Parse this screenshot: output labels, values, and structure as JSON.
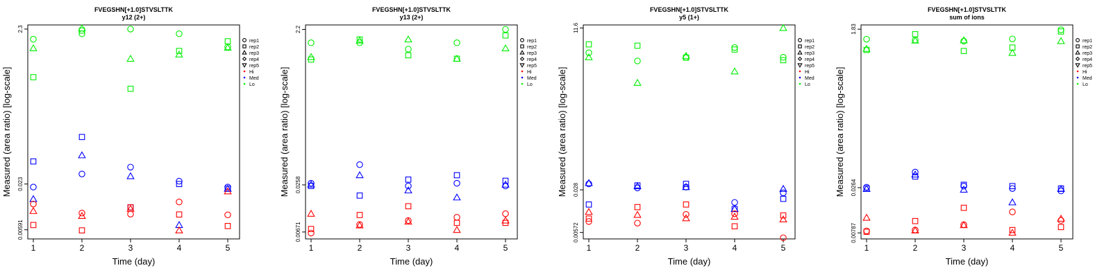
{
  "chart_data": [
    {
      "type": "scatter",
      "title": "FVEGSHN[+1.0]STVSLTTK",
      "subtitle": "y12 (2+)",
      "xlabel": "Time (day)",
      "ylabel": "Measured (area ratio) [log-scale]",
      "yscale": "log",
      "y_ticks": [
        "0.00591",
        "0.023",
        "2.3"
      ],
      "x_ticks": [
        "1",
        "2",
        "3",
        "4",
        "5"
      ],
      "ylim": [
        0.0045,
        2.6
      ],
      "legend": {
        "position": "right",
        "reps": [
          "rep1",
          "rep2",
          "rep3",
          "rep4",
          "rep5"
        ],
        "groups": [
          {
            "name": "Hi",
            "color": "#ff0000"
          },
          {
            "name": "Med",
            "color": "#0000ff"
          },
          {
            "name": "Lo",
            "color": "#00ee00"
          }
        ]
      },
      "series": [
        {
          "group": "Lo",
          "rep": "rep1",
          "points": [
            [
              1,
              1.7
            ],
            [
              2,
              2.0
            ],
            [
              3,
              2.3
            ],
            [
              4,
              2.0
            ],
            [
              5,
              1.35
            ]
          ]
        },
        {
          "group": "Lo",
          "rep": "rep2",
          "points": [
            [
              1,
              0.55
            ],
            [
              2,
              2.2
            ],
            [
              3,
              0.39
            ],
            [
              4,
              1.2
            ],
            [
              5,
              1.6
            ]
          ]
        },
        {
          "group": "Lo",
          "rep": "rep3",
          "points": [
            [
              1,
              1.3
            ],
            [
              2,
              2.35
            ],
            [
              3,
              0.95
            ],
            [
              4,
              1.08
            ],
            [
              5,
              1.32
            ]
          ]
        },
        {
          "group": "Med",
          "rep": "rep1",
          "points": [
            [
              1,
              0.021
            ],
            [
              2,
              0.031
            ],
            [
              3,
              0.038
            ],
            [
              4,
              0.025
            ],
            [
              5,
              0.021
            ]
          ]
        },
        {
          "group": "Med",
          "rep": "rep2",
          "points": [
            [
              1,
              0.045
            ],
            [
              2,
              0.093
            ],
            [
              3,
              0.0115
            ],
            [
              4,
              0.023
            ],
            [
              5,
              0.02
            ]
          ]
        },
        {
          "group": "Med",
          "rep": "rep3",
          "points": [
            [
              1,
              0.0147
            ],
            [
              2,
              0.054
            ],
            [
              3,
              0.029
            ],
            [
              4,
              0.0068
            ],
            [
              5,
              0.02
            ]
          ]
        },
        {
          "group": "Hi",
          "rep": "rep1",
          "points": [
            [
              1,
              0.0127
            ],
            [
              2,
              0.0097
            ],
            [
              3,
              0.0094
            ],
            [
              4,
              0.0135
            ],
            [
              5,
              0.0092
            ]
          ]
        },
        {
          "group": "Hi",
          "rep": "rep2",
          "points": [
            [
              1,
              0.0068
            ],
            [
              2,
              0.0058
            ],
            [
              3,
              0.0115
            ],
            [
              4,
              0.0093
            ],
            [
              5,
              0.0066
            ]
          ]
        },
        {
          "group": "Hi",
          "rep": "rep3",
          "points": [
            [
              1,
              0.0103
            ],
            [
              2,
              0.0089
            ],
            [
              3,
              0.011
            ],
            [
              4,
              0.0058
            ],
            [
              5,
              0.0185
            ]
          ]
        }
      ]
    },
    {
      "type": "scatter",
      "title": "FVEGSHN[+1.0]STVSLTTK",
      "subtitle": "y13 (2+)",
      "xlabel": "Time (day)",
      "ylabel": "Measured (area ratio) [log-scale]",
      "yscale": "log",
      "y_ticks": [
        "0.00671",
        "0.0258",
        "2.2"
      ],
      "x_ticks": [
        "1",
        "2",
        "3",
        "4",
        "5"
      ],
      "ylim": [
        0.0055,
        2.5
      ],
      "legend": {
        "position": "right",
        "reps": [
          "rep1",
          "rep2",
          "rep3",
          "rep4",
          "rep5"
        ],
        "groups": [
          {
            "name": "Hi",
            "color": "#ff0000"
          },
          {
            "name": "Med",
            "color": "#0000ff"
          },
          {
            "name": "Lo",
            "color": "#00ee00"
          }
        ]
      },
      "series": [
        {
          "group": "Lo",
          "rep": "rep1",
          "points": [
            [
              1,
              1.5
            ],
            [
              2,
              1.5
            ],
            [
              3,
              1.25
            ],
            [
              4,
              1.5
            ],
            [
              5,
              2.2
            ]
          ]
        },
        {
          "group": "Lo",
          "rep": "rep2",
          "points": [
            [
              1,
              0.93
            ],
            [
              2,
              1.65
            ],
            [
              3,
              1.05
            ],
            [
              4,
              0.95
            ],
            [
              5,
              1.85
            ]
          ]
        },
        {
          "group": "Lo",
          "rep": "rep3",
          "points": [
            [
              1,
              1.0
            ],
            [
              2,
              1.6
            ],
            [
              3,
              1.65
            ],
            [
              4,
              0.95
            ],
            [
              5,
              1.28
            ]
          ]
        },
        {
          "group": "Med",
          "rep": "rep1",
          "points": [
            [
              1,
              0.027
            ],
            [
              2,
              0.046
            ],
            [
              3,
              0.025
            ],
            [
              4,
              0.027
            ],
            [
              5,
              0.025
            ]
          ]
        },
        {
          "group": "Med",
          "rep": "rep2",
          "points": [
            [
              1,
              0.025
            ],
            [
              2,
              0.019
            ],
            [
              3,
              0.03
            ],
            [
              4,
              0.034
            ],
            [
              5,
              0.029
            ]
          ]
        },
        {
          "group": "Med",
          "rep": "rep3",
          "points": [
            [
              1,
              0.026
            ],
            [
              2,
              0.034
            ],
            [
              3,
              0.022
            ],
            [
              4,
              0.018
            ],
            [
              5,
              0.026
            ]
          ]
        },
        {
          "group": "Hi",
          "rep": "rep1",
          "points": [
            [
              1,
              0.0065
            ],
            [
              2,
              0.0083
            ],
            [
              3,
              0.0093
            ],
            [
              4,
              0.0102
            ],
            [
              5,
              0.0113
            ]
          ]
        },
        {
          "group": "Hi",
          "rep": "rep2",
          "points": [
            [
              1,
              0.0073
            ],
            [
              2,
              0.0109
            ],
            [
              3,
              0.014
            ],
            [
              4,
              0.0087
            ],
            [
              5,
              0.0087
            ]
          ]
        },
        {
          "group": "Hi",
          "rep": "rep3",
          "points": [
            [
              1,
              0.0113
            ],
            [
              2,
              0.0081
            ],
            [
              3,
              0.009
            ],
            [
              4,
              0.0071
            ],
            [
              5,
              0.0093
            ]
          ]
        }
      ]
    },
    {
      "type": "scatter",
      "title": "FVEGSHN[+1.0]STVSLTTK",
      "subtitle": "y5 (1+)",
      "xlabel": "Time (day)",
      "ylabel": "Measured (area ratio) [log-scale]",
      "yscale": "log",
      "y_ticks": [
        "0.00572",
        "0.028",
        "11.6"
      ],
      "x_ticks": [
        "1",
        "2",
        "3",
        "4",
        "5"
      ],
      "ylim": [
        0.0045,
        13
      ],
      "legend": {
        "position": "right",
        "reps": [
          "rep1",
          "rep2",
          "rep3",
          "rep4",
          "rep5"
        ],
        "groups": [
          {
            "name": "Hi",
            "color": "#ff0000"
          },
          {
            "name": "Med",
            "color": "#0000ff"
          },
          {
            "name": "Lo",
            "color": "#00ee00"
          }
        ]
      },
      "series": [
        {
          "group": "Lo",
          "rep": "rep1",
          "points": [
            [
              1,
              4.6
            ],
            [
              2,
              3.4
            ],
            [
              3,
              3.9
            ],
            [
              4,
              5.6
            ],
            [
              5,
              3.9
            ]
          ]
        },
        {
          "group": "Lo",
          "rep": "rep2",
          "points": [
            [
              1,
              6.3
            ],
            [
              2,
              6.0
            ],
            [
              3,
              3.85
            ],
            [
              4,
              5.2
            ],
            [
              5,
              3.5
            ]
          ]
        },
        {
          "group": "Lo",
          "rep": "rep3",
          "points": [
            [
              1,
              3.9
            ],
            [
              2,
              1.5
            ],
            [
              3,
              4.1
            ],
            [
              4,
              2.3
            ],
            [
              5,
              11.6
            ]
          ]
        },
        {
          "group": "Med",
          "rep": "rep1",
          "points": [
            [
              1,
              0.035
            ],
            [
              2,
              0.03
            ],
            [
              3,
              0.031
            ],
            [
              4,
              0.0175
            ],
            [
              5,
              0.025
            ]
          ]
        },
        {
          "group": "Med",
          "rep": "rep2",
          "points": [
            [
              1,
              0.0162
            ],
            [
              2,
              0.033
            ],
            [
              3,
              0.035
            ],
            [
              4,
              0.0137
            ],
            [
              5,
              0.02
            ]
          ]
        },
        {
          "group": "Med",
          "rep": "rep3",
          "points": [
            [
              1,
              0.036
            ],
            [
              2,
              0.032
            ],
            [
              3,
              0.031
            ],
            [
              4,
              0.0137
            ],
            [
              5,
              0.029
            ]
          ]
        },
        {
          "group": "Hi",
          "rep": "rep1",
          "points": [
            [
              1,
              0.0086
            ],
            [
              2,
              0.0081
            ],
            [
              3,
              0.0112
            ],
            [
              4,
              0.0115
            ],
            [
              5,
              0.0047
            ]
          ]
        },
        {
          "group": "Hi",
          "rep": "rep2",
          "points": [
            [
              1,
              0.0096
            ],
            [
              2,
              0.0147
            ],
            [
              3,
              0.0162
            ],
            [
              4,
              0.0072
            ],
            [
              5,
              0.0108
            ]
          ]
        },
        {
          "group": "Hi",
          "rep": "rep3",
          "points": [
            [
              1,
              0.0123
            ],
            [
              2,
              0.011
            ],
            [
              3,
              0.0097
            ],
            [
              4,
              0.0103
            ],
            [
              5,
              0.0093
            ]
          ]
        }
      ]
    },
    {
      "type": "scatter",
      "title": "FVEGSHN[+1.0]STVSLTTK",
      "subtitle": "sum of ions",
      "xlabel": "Time (day)",
      "ylabel": "Measured (area ratio) [log-scale]",
      "yscale": "log",
      "y_ticks": [
        "0.00787",
        "0.0264",
        "1.83"
      ],
      "x_ticks": [
        "1",
        "2",
        "3",
        "4",
        "5"
      ],
      "ylim": [
        0.0067,
        2.05
      ],
      "legend": {
        "position": "right",
        "reps": [
          "rep1",
          "rep2",
          "rep3",
          "rep4",
          "rep5"
        ],
        "groups": [
          {
            "name": "Hi",
            "color": "#ff0000"
          },
          {
            "name": "Med",
            "color": "#0000ff"
          },
          {
            "name": "Lo",
            "color": "#00ee00"
          }
        ]
      },
      "series": [
        {
          "group": "Lo",
          "rep": "rep1",
          "points": [
            [
              1,
              1.4
            ],
            [
              2,
              1.37
            ],
            [
              3,
              1.33
            ],
            [
              4,
              1.41
            ],
            [
              5,
              1.8
            ]
          ]
        },
        {
          "group": "Lo",
          "rep": "rep2",
          "points": [
            [
              1,
              1.05
            ],
            [
              2,
              1.6
            ],
            [
              3,
              1.02
            ],
            [
              4,
              1.12
            ],
            [
              5,
              1.72
            ]
          ]
        },
        {
          "group": "Lo",
          "rep": "rep3",
          "points": [
            [
              1,
              1.08
            ],
            [
              2,
              1.35
            ],
            [
              3,
              1.36
            ],
            [
              4,
              0.97
            ],
            [
              5,
              1.33
            ]
          ]
        },
        {
          "group": "Med",
          "rep": "rep1",
          "points": [
            [
              1,
              0.0267
            ],
            [
              2,
              0.04
            ],
            [
              3,
              0.0275
            ],
            [
              4,
              0.0258
            ],
            [
              5,
              0.0242
            ]
          ]
        },
        {
          "group": "Med",
          "rep": "rep2",
          "points": [
            [
              1,
              0.0258
            ],
            [
              2,
              0.0355
            ],
            [
              3,
              0.0285
            ],
            [
              4,
              0.0275
            ],
            [
              5,
              0.0258
            ]
          ]
        },
        {
          "group": "Med",
          "rep": "rep3",
          "points": [
            [
              1,
              0.0255
            ],
            [
              2,
              0.0375
            ],
            [
              3,
              0.025
            ],
            [
              4,
              0.0178
            ],
            [
              5,
              0.0255
            ]
          ]
        },
        {
          "group": "Hi",
          "rep": "rep1",
          "points": [
            [
              1,
              0.0083
            ],
            [
              2,
              0.0085
            ],
            [
              3,
              0.0098
            ],
            [
              4,
              0.0138
            ],
            [
              5,
              0.011
            ]
          ]
        },
        {
          "group": "Hi",
          "rep": "rep2",
          "points": [
            [
              1,
              0.0081
            ],
            [
              2,
              0.0108
            ],
            [
              3,
              0.0154
            ],
            [
              4,
              0.0085
            ],
            [
              5,
              0.0092
            ]
          ]
        },
        {
          "group": "Hi",
          "rep": "rep3",
          "points": [
            [
              1,
              0.0118
            ],
            [
              2,
              0.0084
            ],
            [
              3,
              0.0097
            ],
            [
              4,
              0.0079
            ],
            [
              5,
              0.0115
            ]
          ]
        }
      ]
    }
  ]
}
